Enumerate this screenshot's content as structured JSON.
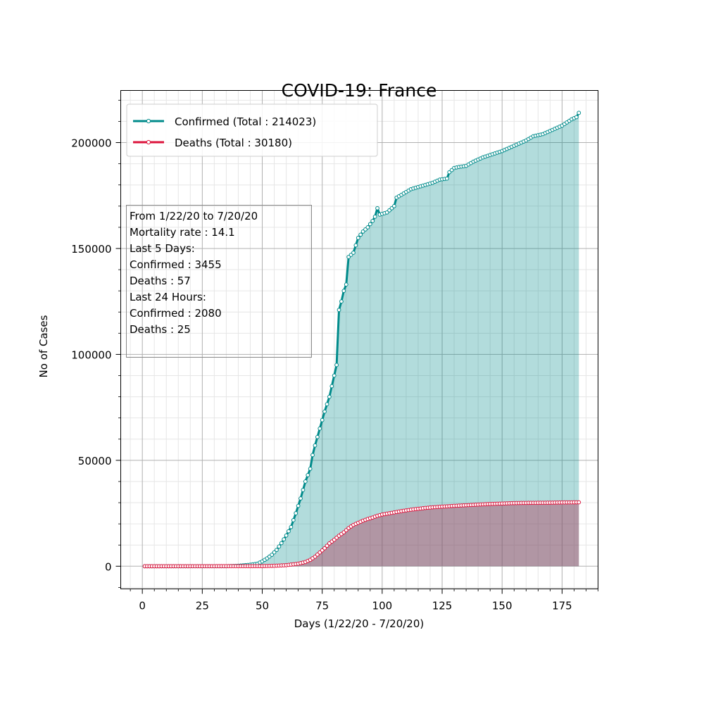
{
  "chart_data": {
    "type": "area",
    "title": "COVID-19: France",
    "xlabel": "Days (1/22/20 - 7/20/20)",
    "ylabel": "No of Cases",
    "xlim": [
      -9,
      190
    ],
    "ylim": [
      -10700,
      224600
    ],
    "xticks": [
      0,
      25,
      50,
      75,
      100,
      125,
      150,
      175
    ],
    "yticks": [
      0,
      50000,
      100000,
      150000,
      200000
    ],
    "grid": true,
    "legend_position": "top-left",
    "series": [
      {
        "name": "Confirmed (Total : 214023)",
        "color": "#008B8B",
        "fill_color": "#008B8B",
        "anchors": [
          [
            1,
            0
          ],
          [
            35,
            12
          ],
          [
            40,
            200
          ],
          [
            45,
            700
          ],
          [
            48,
            1200
          ],
          [
            50,
            2300
          ],
          [
            52,
            3700
          ],
          [
            54,
            5400
          ],
          [
            56,
            7700
          ],
          [
            58,
            10900
          ],
          [
            60,
            14500
          ],
          [
            62,
            18500
          ],
          [
            64,
            25000
          ],
          [
            66,
            32000
          ],
          [
            68,
            40000
          ],
          [
            70,
            46000
          ],
          [
            71,
            52500
          ],
          [
            72,
            57000
          ],
          [
            74,
            65000
          ],
          [
            76,
            73000
          ],
          [
            78,
            80000
          ],
          [
            80,
            90000
          ],
          [
            81,
            95000
          ],
          [
            82,
            121000
          ],
          [
            83,
            125000
          ],
          [
            84,
            130000
          ],
          [
            85,
            133000
          ],
          [
            86,
            146000
          ],
          [
            88,
            148000
          ],
          [
            90,
            155000
          ],
          [
            92,
            158000
          ],
          [
            94,
            160000
          ],
          [
            96,
            163000
          ],
          [
            97,
            165000
          ],
          [
            98,
            169000
          ],
          [
            99,
            166000
          ],
          [
            102,
            167000
          ],
          [
            105,
            170000
          ],
          [
            106,
            174000
          ],
          [
            109,
            176000
          ],
          [
            112,
            178000
          ],
          [
            115,
            179000
          ],
          [
            118,
            180000
          ],
          [
            121,
            181000
          ],
          [
            124,
            182500
          ],
          [
            127,
            183000
          ],
          [
            128,
            186000
          ],
          [
            130,
            188000
          ],
          [
            132,
            188500
          ],
          [
            135,
            189000
          ],
          [
            138,
            191000
          ],
          [
            142,
            193000
          ],
          [
            146,
            194500
          ],
          [
            150,
            196000
          ],
          [
            154,
            198000
          ],
          [
            157,
            199500
          ],
          [
            160,
            201000
          ],
          [
            163,
            203000
          ],
          [
            167,
            204000
          ],
          [
            171,
            206000
          ],
          [
            175,
            208000
          ],
          [
            177,
            209500
          ],
          [
            179,
            211000
          ],
          [
            181,
            212000
          ],
          [
            182,
            214023
          ]
        ]
      },
      {
        "name": "Deaths (Total : 30180)",
        "color": "#DC143C",
        "fill_color": "#B04060",
        "anchors": [
          [
            1,
            0
          ],
          [
            50,
            50
          ],
          [
            55,
            200
          ],
          [
            60,
            500
          ],
          [
            65,
            1200
          ],
          [
            68,
            2000
          ],
          [
            70,
            3000
          ],
          [
            72,
            4500
          ],
          [
            74,
            6500
          ],
          [
            76,
            8500
          ],
          [
            78,
            10800
          ],
          [
            80,
            12500
          ],
          [
            82,
            14400
          ],
          [
            84,
            16000
          ],
          [
            86,
            18000
          ],
          [
            88,
            19500
          ],
          [
            90,
            20500
          ],
          [
            92,
            21500
          ],
          [
            94,
            22300
          ],
          [
            96,
            23000
          ],
          [
            98,
            23800
          ],
          [
            100,
            24400
          ],
          [
            103,
            25000
          ],
          [
            106,
            25600
          ],
          [
            109,
            26200
          ],
          [
            112,
            26700
          ],
          [
            115,
            27100
          ],
          [
            118,
            27500
          ],
          [
            122,
            27900
          ],
          [
            126,
            28200
          ],
          [
            130,
            28500
          ],
          [
            135,
            28800
          ],
          [
            140,
            29100
          ],
          [
            145,
            29400
          ],
          [
            150,
            29600
          ],
          [
            155,
            29800
          ],
          [
            160,
            29900
          ],
          [
            165,
            29950
          ],
          [
            170,
            30000
          ],
          [
            175,
            30100
          ],
          [
            182,
            30180
          ]
        ]
      }
    ],
    "annotation": [
      "From 1/22/20 to 7/20/20",
      "Mortality rate : 14.1",
      "Last 5 Days:",
      "Confirmed : 3455",
      "Deaths : 57",
      "Last 24 Hours:",
      "Confirmed : 2080",
      "Deaths : 25"
    ]
  }
}
